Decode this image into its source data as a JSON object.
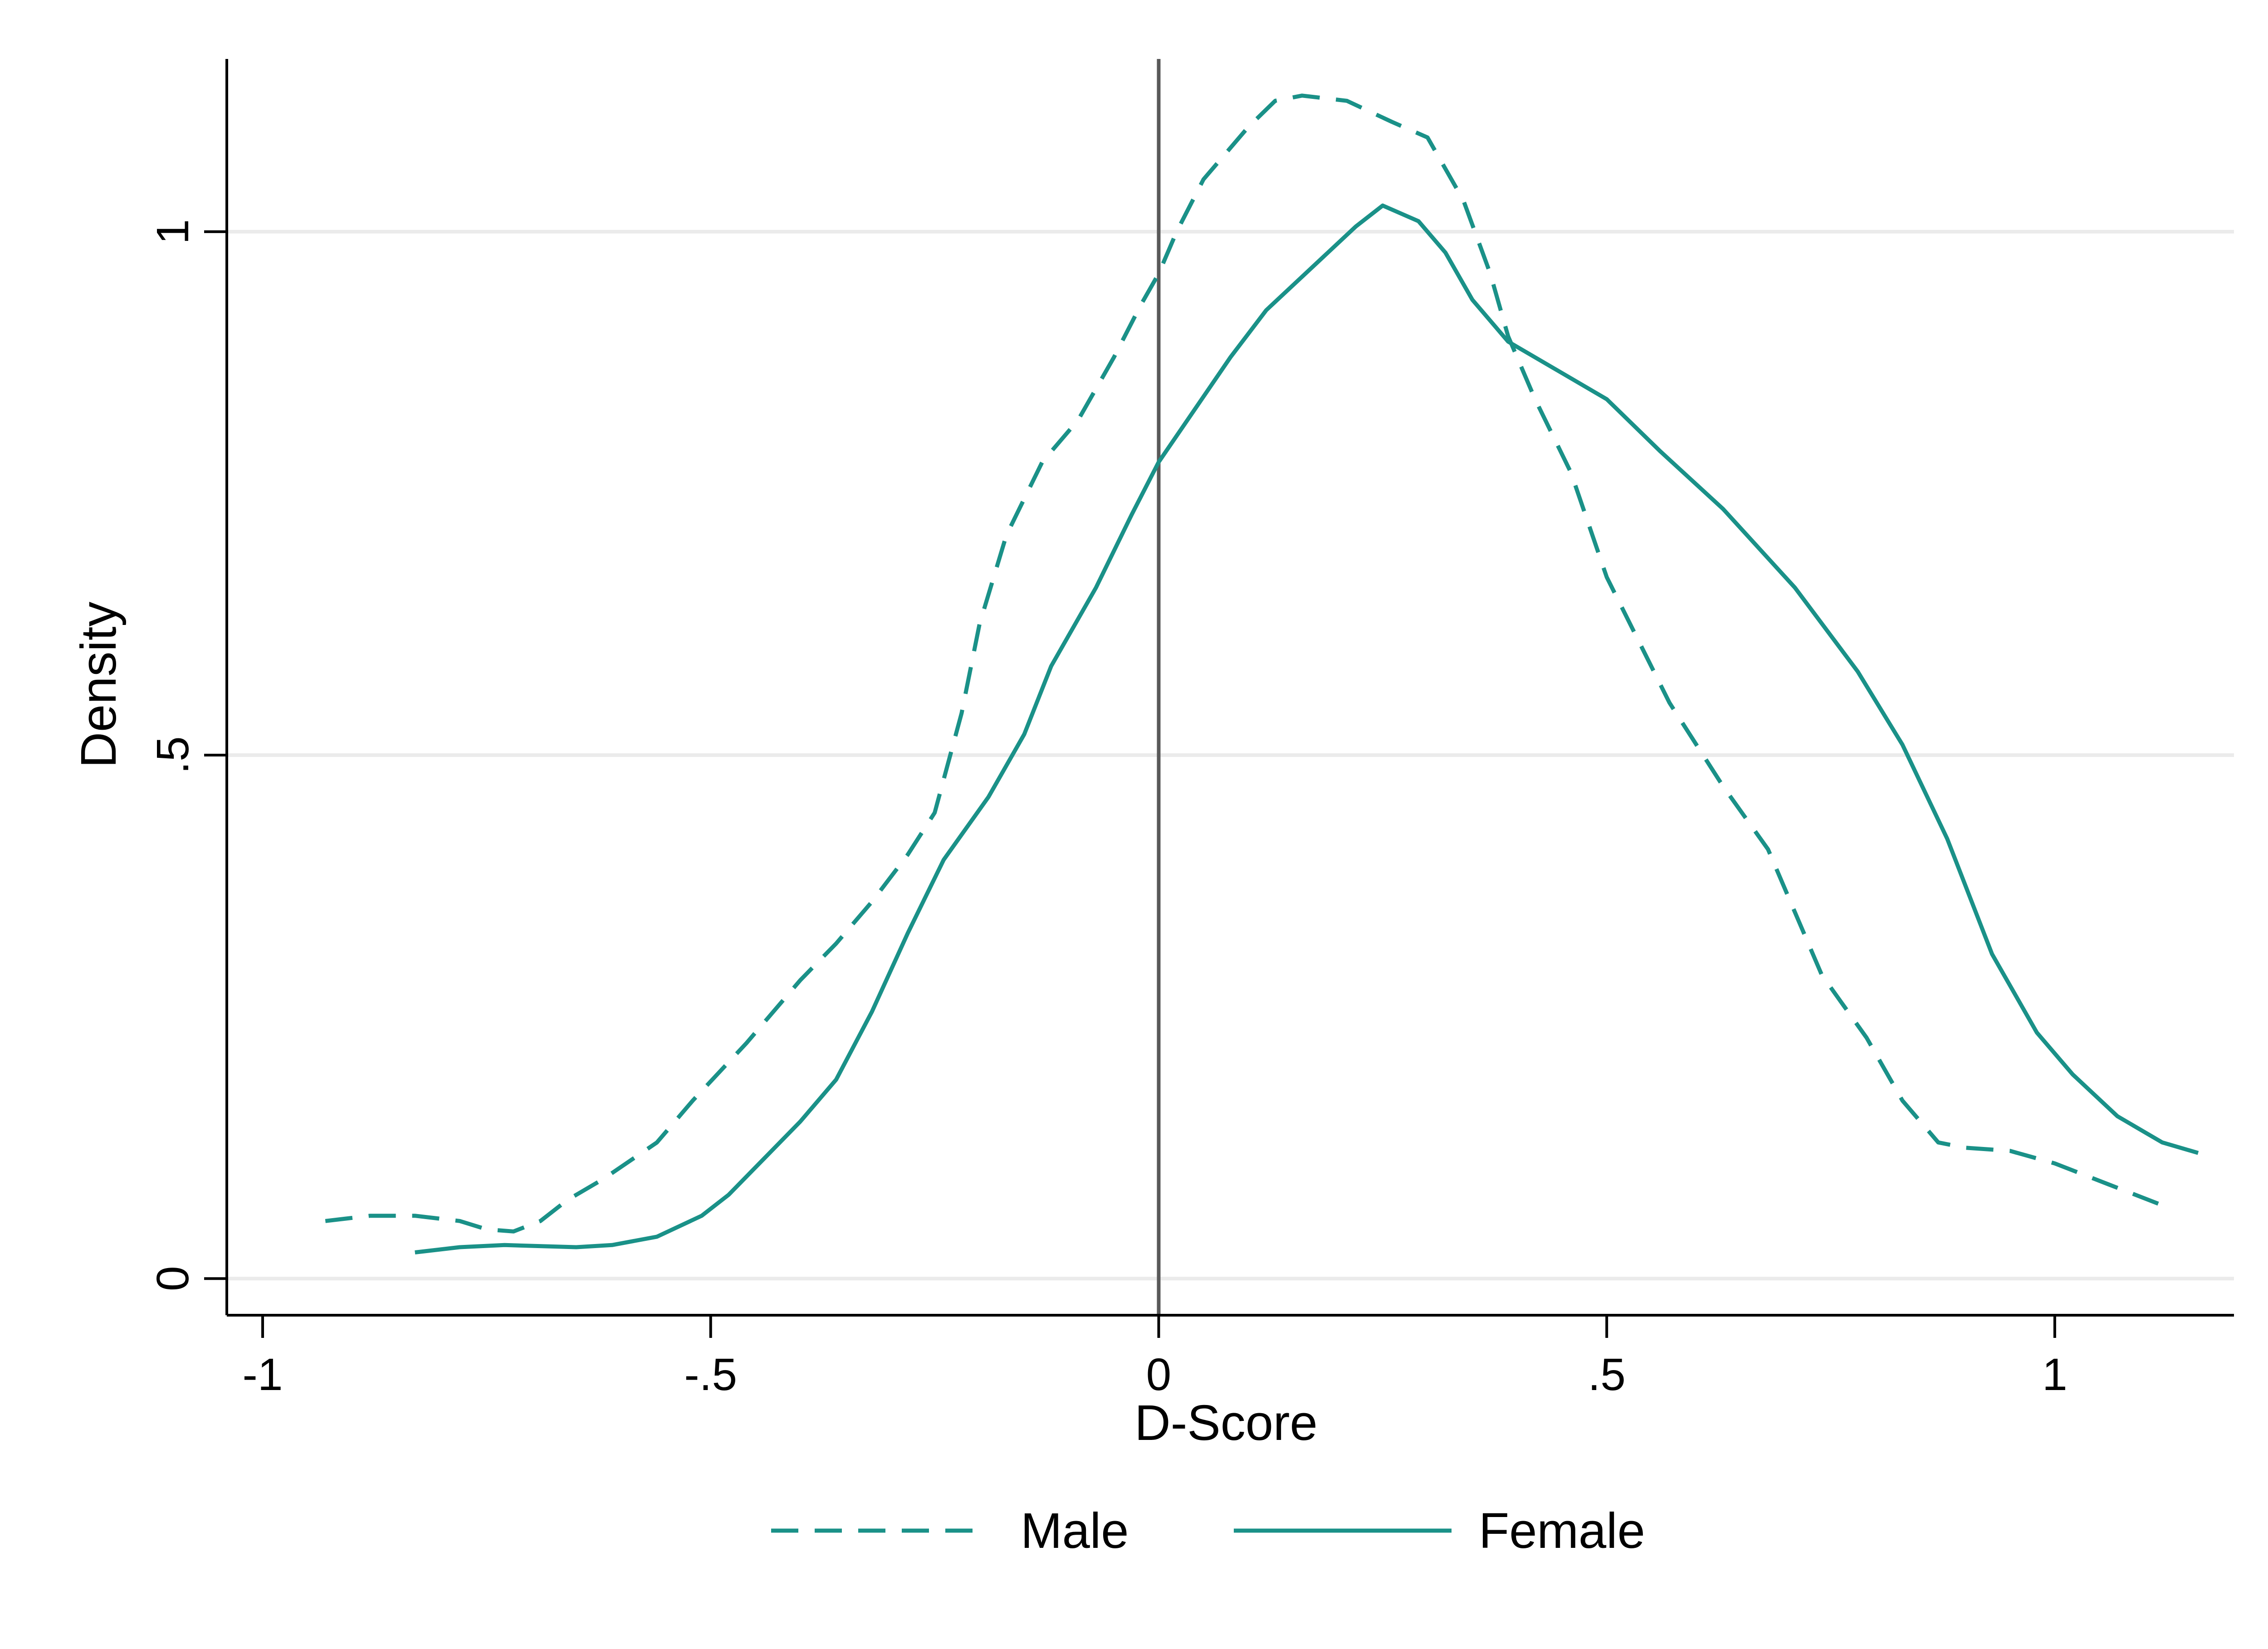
{
  "chart_data": {
    "type": "line",
    "title": "",
    "xlabel": "D-Score",
    "ylabel": "Density",
    "xlim": [
      -1.04,
      1.2
    ],
    "ylim": [
      -0.035,
      1.165
    ],
    "x_ticks": [
      {
        "value": -1,
        "label": "-1"
      },
      {
        "value": -0.5,
        "label": "-.5"
      },
      {
        "value": 0,
        "label": "0"
      },
      {
        "value": 0.5,
        "label": ".5"
      },
      {
        "value": 1,
        "label": "1"
      }
    ],
    "y_ticks": [
      {
        "value": 0,
        "label": "0"
      },
      {
        "value": 0.5,
        "label": ".5"
      },
      {
        "value": 1,
        "label": "1"
      }
    ],
    "grid": "horizontal",
    "reference_line_x": 0,
    "legend_position": "bottom",
    "colors": {
      "series": "#1A9188",
      "grid": "#EBEBEB",
      "axis": "#000000",
      "refline": "#595959"
    },
    "series": [
      {
        "name": "Male",
        "style": "dashed",
        "points": [
          [
            -0.93,
            0.055
          ],
          [
            -0.88,
            0.06
          ],
          [
            -0.83,
            0.06
          ],
          [
            -0.78,
            0.055
          ],
          [
            -0.75,
            0.047
          ],
          [
            -0.72,
            0.045
          ],
          [
            -0.69,
            0.055
          ],
          [
            -0.66,
            0.075
          ],
          [
            -0.62,
            0.095
          ],
          [
            -0.56,
            0.13
          ],
          [
            -0.52,
            0.17
          ],
          [
            -0.46,
            0.225
          ],
          [
            -0.4,
            0.285
          ],
          [
            -0.36,
            0.32
          ],
          [
            -0.32,
            0.36
          ],
          [
            -0.28,
            0.405
          ],
          [
            -0.25,
            0.445
          ],
          [
            -0.22,
            0.54
          ],
          [
            -0.2,
            0.625
          ],
          [
            -0.17,
            0.71
          ],
          [
            -0.13,
            0.78
          ],
          [
            -0.09,
            0.82
          ],
          [
            -0.05,
            0.88
          ],
          [
            -0.02,
            0.93
          ],
          [
            0.0,
            0.96
          ],
          [
            0.02,
            1.0
          ],
          [
            0.05,
            1.05
          ],
          [
            0.1,
            1.1
          ],
          [
            0.13,
            1.125
          ],
          [
            0.16,
            1.13
          ],
          [
            0.21,
            1.125
          ],
          [
            0.26,
            1.105
          ],
          [
            0.3,
            1.09
          ],
          [
            0.34,
            1.03
          ],
          [
            0.37,
            0.96
          ],
          [
            0.39,
            0.9
          ],
          [
            0.42,
            0.84
          ],
          [
            0.46,
            0.77
          ],
          [
            0.5,
            0.67
          ],
          [
            0.57,
            0.55
          ],
          [
            0.63,
            0.47
          ],
          [
            0.68,
            0.41
          ],
          [
            0.71,
            0.35
          ],
          [
            0.74,
            0.29
          ],
          [
            0.79,
            0.23
          ],
          [
            0.83,
            0.17
          ],
          [
            0.87,
            0.13
          ],
          [
            0.9,
            0.125
          ],
          [
            0.95,
            0.122
          ],
          [
            1.0,
            0.11
          ],
          [
            1.06,
            0.09
          ],
          [
            1.12,
            0.07
          ]
        ]
      },
      {
        "name": "Female",
        "style": "solid",
        "points": [
          [
            -0.83,
            0.025
          ],
          [
            -0.78,
            0.03
          ],
          [
            -0.73,
            0.032
          ],
          [
            -0.65,
            0.03
          ],
          [
            -0.61,
            0.032
          ],
          [
            -0.56,
            0.04
          ],
          [
            -0.51,
            0.06
          ],
          [
            -0.48,
            0.08
          ],
          [
            -0.44,
            0.115
          ],
          [
            -0.4,
            0.15
          ],
          [
            -0.36,
            0.19
          ],
          [
            -0.32,
            0.255
          ],
          [
            -0.28,
            0.33
          ],
          [
            -0.24,
            0.4
          ],
          [
            -0.19,
            0.46
          ],
          [
            -0.15,
            0.52
          ],
          [
            -0.12,
            0.585
          ],
          [
            -0.07,
            0.66
          ],
          [
            -0.03,
            0.73
          ],
          [
            0.0,
            0.78
          ],
          [
            0.04,
            0.83
          ],
          [
            0.08,
            0.88
          ],
          [
            0.12,
            0.925
          ],
          [
            0.17,
            0.965
          ],
          [
            0.22,
            1.005
          ],
          [
            0.25,
            1.025
          ],
          [
            0.29,
            1.01
          ],
          [
            0.32,
            0.98
          ],
          [
            0.35,
            0.935
          ],
          [
            0.39,
            0.895
          ],
          [
            0.44,
            0.87
          ],
          [
            0.5,
            0.84
          ],
          [
            0.56,
            0.79
          ],
          [
            0.63,
            0.735
          ],
          [
            0.71,
            0.66
          ],
          [
            0.78,
            0.58
          ],
          [
            0.83,
            0.51
          ],
          [
            0.88,
            0.42
          ],
          [
            0.93,
            0.31
          ],
          [
            0.98,
            0.235
          ],
          [
            1.02,
            0.195
          ],
          [
            1.07,
            0.155
          ],
          [
            1.12,
            0.13
          ],
          [
            1.16,
            0.12
          ]
        ]
      }
    ]
  }
}
